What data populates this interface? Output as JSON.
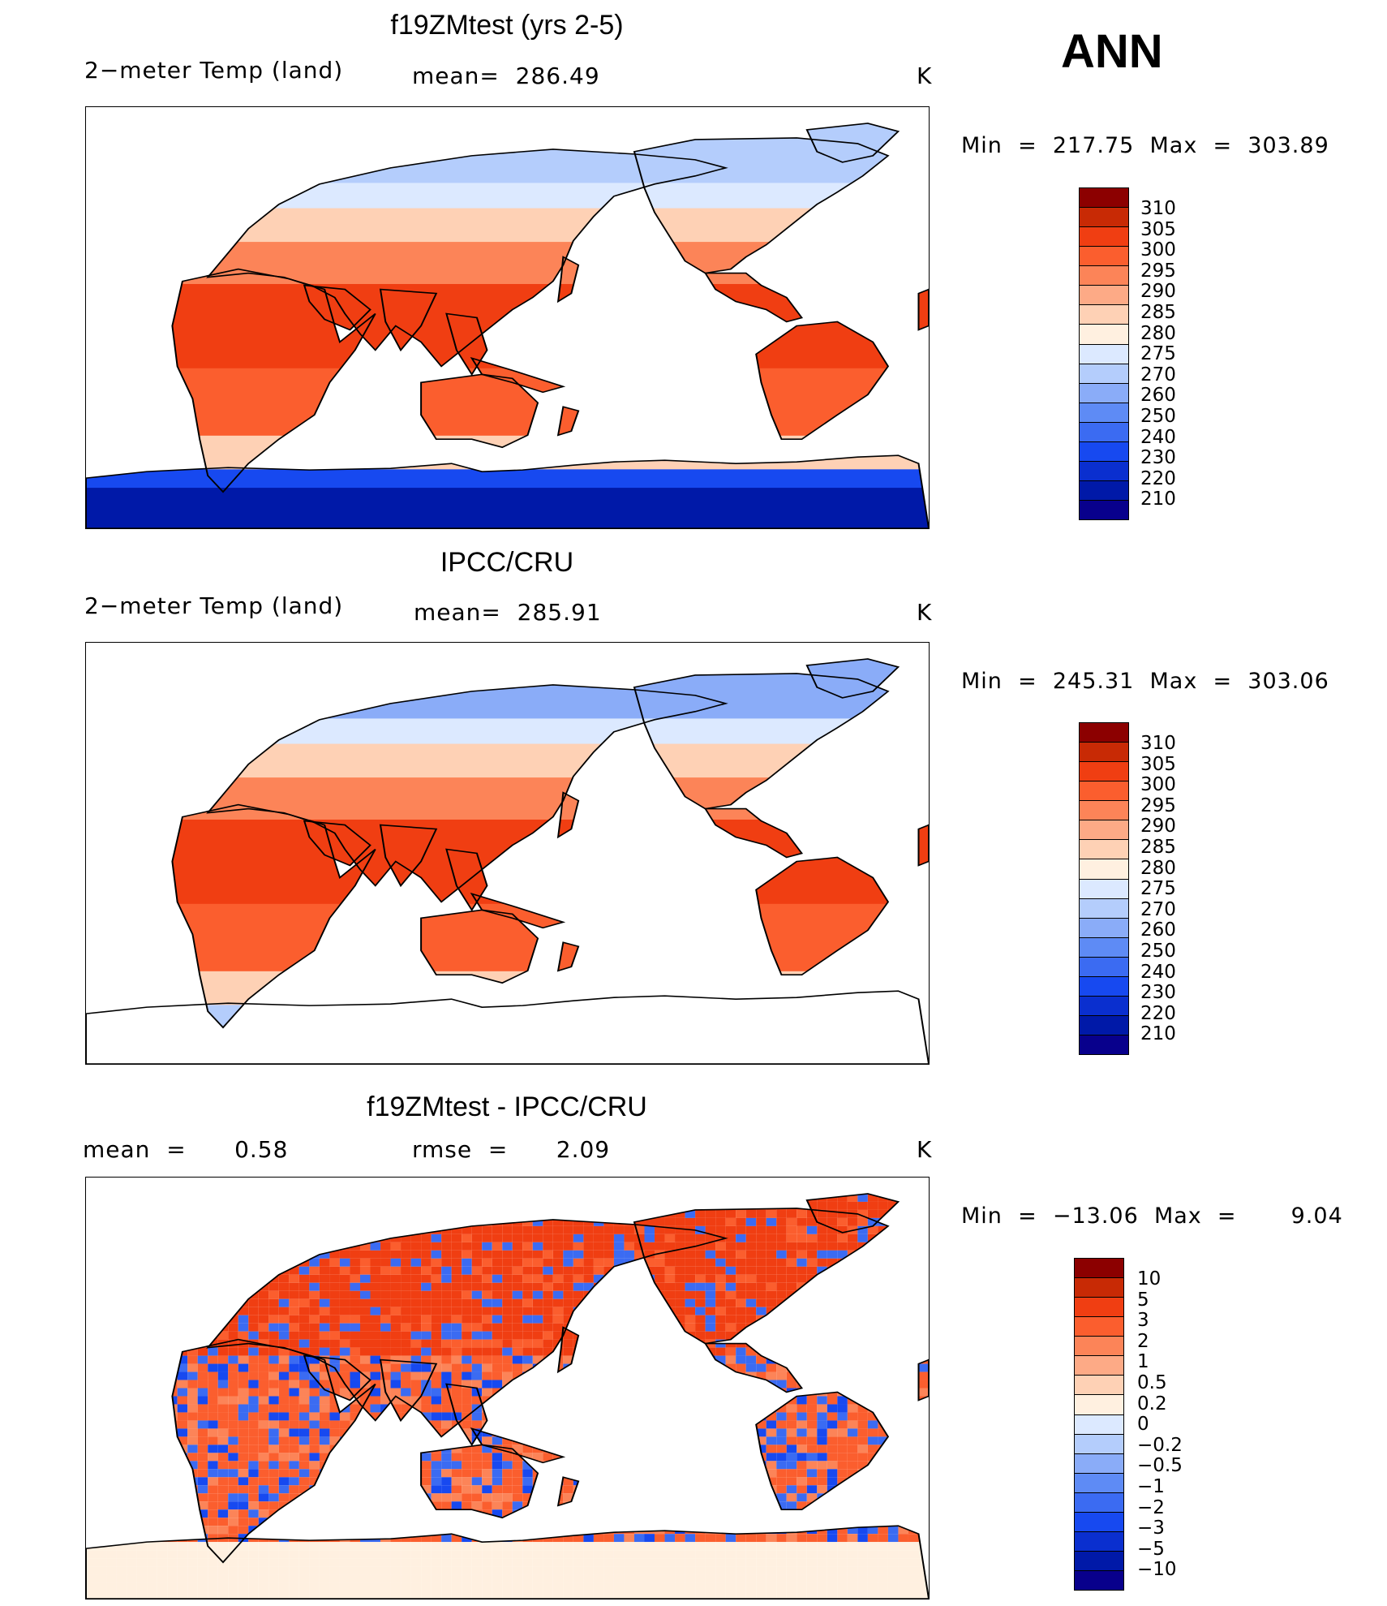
{
  "season": "ANN",
  "units": "K",
  "colors": {
    "abs": [
      "#08008c",
      "#0019a8",
      "#0a2fcf",
      "#1749f0",
      "#3b6bf2",
      "#5e8bf5",
      "#8aacf8",
      "#b4cdfc",
      "#dce9ff",
      "#fff0e0",
      "#fed1b5",
      "#fdaa86",
      "#fc8458",
      "#fb5e2e",
      "#f03e12",
      "#c82a05",
      "#8c0000"
    ],
    "diff": [
      "#08008c",
      "#0019a8",
      "#0a2fcf",
      "#1749f0",
      "#3b6bf2",
      "#5e8bf5",
      "#8aacf8",
      "#b4cdfc",
      "#dce9ff",
      "#fff0e0",
      "#fed1b5",
      "#fdaa86",
      "#fc8458",
      "#fb5e2e",
      "#f03e12",
      "#c82a05",
      "#8c0000"
    ]
  },
  "panels": [
    {
      "title": "f19ZMtest (yrs 2-5)",
      "left_label": "2−meter Temp (land)",
      "mid_label": "mean=  286.49",
      "units": "K",
      "minmax": "Min  =  217.75  Max  =  303.89",
      "colorbar_ticks": [
        "310",
        "305",
        "300",
        "295",
        "290",
        "285",
        "280",
        "275",
        "270",
        "260",
        "250",
        "240",
        "230",
        "220",
        "210"
      ],
      "map_kind": "model"
    },
    {
      "title": "IPCC/CRU",
      "left_label": "2−meter Temp (land)",
      "mid_label": "mean=  285.91",
      "units": "K",
      "minmax": "Min  =  245.31  Max  =  303.06",
      "colorbar_ticks": [
        "310",
        "305",
        "300",
        "295",
        "290",
        "285",
        "280",
        "275",
        "270",
        "260",
        "250",
        "240",
        "230",
        "220",
        "210"
      ],
      "map_kind": "obs"
    },
    {
      "title": "f19ZMtest - IPCC/CRU",
      "left_label": "mean  =      0.58",
      "mid_label": "rmse  =      2.09",
      "units": "K",
      "minmax": "Min  =  −13.06  Max  =       9.04",
      "colorbar_ticks": [
        "10",
        "5",
        "3",
        "2",
        "1",
        "0.5",
        "0.2",
        "0",
        "−0.2",
        "−0.5",
        "−1",
        "−2",
        "−3",
        "−5",
        "−10"
      ],
      "map_kind": "diff"
    }
  ]
}
